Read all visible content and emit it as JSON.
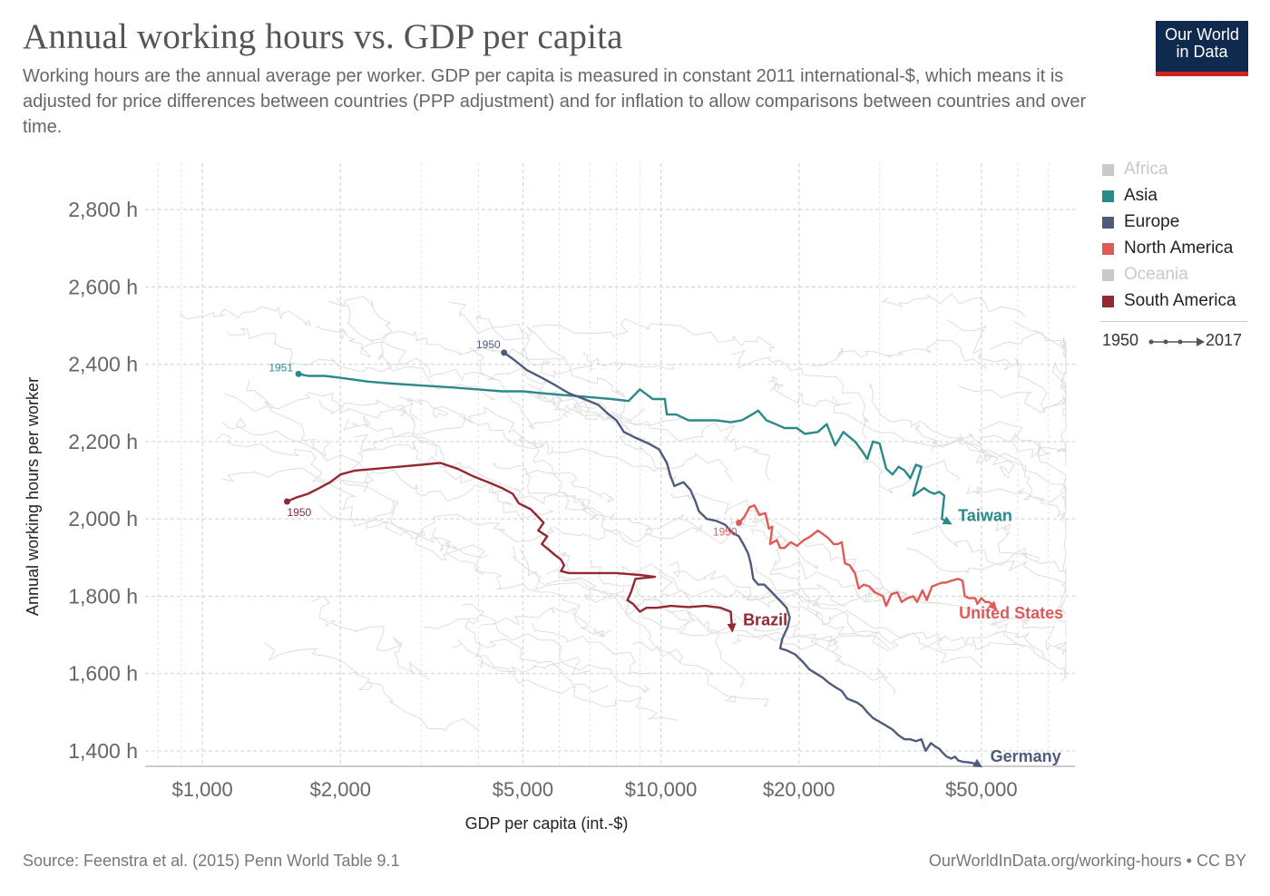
{
  "header": {
    "title": "Annual working hours vs. GDP per capita",
    "subtitle": "Working hours are the annual average per worker. GDP per capita is measured in constant 2011 international-$, which means it is adjusted for price differences between countries (PPP adjustment) and for inflation to allow comparisons between countries and over time."
  },
  "logo": {
    "line1": "Our World",
    "line2": "in Data"
  },
  "footer": {
    "source": "Source: Feenstra et al. (2015) Penn World Table 9.1",
    "credit": "OurWorldInData.org/working-hours • CC BY"
  },
  "legend": {
    "items": [
      {
        "label": "Africa",
        "color": "#c9c9c9",
        "faded": true
      },
      {
        "label": "Asia",
        "color": "#2a8a8a",
        "faded": false
      },
      {
        "label": "Europe",
        "color": "#4e5b7d",
        "faded": false
      },
      {
        "label": "North America",
        "color": "#e05a58",
        "faded": false
      },
      {
        "label": "Oceania",
        "color": "#c9c9c9",
        "faded": true
      },
      {
        "label": "South America",
        "color": "#932833",
        "faded": false
      }
    ],
    "time_start": "1950",
    "time_end": "2017"
  },
  "chart_data": {
    "type": "scatter",
    "xlabel": "GDP per capita (int.-$)",
    "ylabel": "Annual working hours per worker",
    "x_scale": "log",
    "xlim": [
      750,
      80000
    ],
    "ylim": [
      1360,
      2920
    ],
    "x_ticks": [
      {
        "value": 1000,
        "label": "$1,000"
      },
      {
        "value": 2000,
        "label": "$2,000"
      },
      {
        "value": 5000,
        "label": "$5,000"
      },
      {
        "value": 10000,
        "label": "$10,000"
      },
      {
        "value": 20000,
        "label": "$20,000"
      },
      {
        "value": 50000,
        "label": "$50,000"
      }
    ],
    "x_minor_gridlines": [
      800,
      900,
      3000,
      4000,
      6000,
      7000,
      8000,
      9000,
      30000,
      40000,
      60000,
      70000
    ],
    "y_ticks": [
      {
        "value": 1400,
        "label": "1,400 h"
      },
      {
        "value": 1600,
        "label": "1,600 h"
      },
      {
        "value": 1800,
        "label": "1,800 h"
      },
      {
        "value": 2000,
        "label": "2,000 h"
      },
      {
        "value": 2200,
        "label": "2,200 h"
      },
      {
        "value": 2400,
        "label": "2,400 h"
      },
      {
        "value": 2600,
        "label": "2,600 h"
      },
      {
        "value": 2800,
        "label": "2,800 h"
      }
    ],
    "grid": true,
    "legend_position": "right",
    "highlighted_series": [
      {
        "name": "Taiwan",
        "region": "Asia",
        "color": "#2a8a8a",
        "start_label": "1951",
        "end_label": "Taiwan",
        "points": [
          [
            1620,
            2375
          ],
          [
            1700,
            2370
          ],
          [
            1850,
            2370
          ],
          [
            2000,
            2365
          ],
          [
            2300,
            2355
          ],
          [
            2600,
            2350
          ],
          [
            3000,
            2345
          ],
          [
            3500,
            2340
          ],
          [
            4000,
            2335
          ],
          [
            4500,
            2330
          ],
          [
            5000,
            2330
          ],
          [
            5500,
            2325
          ],
          [
            6200,
            2320
          ],
          [
            7000,
            2315
          ],
          [
            7800,
            2310
          ],
          [
            8500,
            2305
          ],
          [
            9000,
            2335
          ],
          [
            9600,
            2310
          ],
          [
            10200,
            2310
          ],
          [
            10300,
            2270
          ],
          [
            10800,
            2270
          ],
          [
            11500,
            2255
          ],
          [
            12200,
            2255
          ],
          [
            13200,
            2255
          ],
          [
            14200,
            2250
          ],
          [
            15000,
            2255
          ],
          [
            15800,
            2270
          ],
          [
            16300,
            2280
          ],
          [
            17000,
            2255
          ],
          [
            17800,
            2245
          ],
          [
            18600,
            2235
          ],
          [
            19800,
            2235
          ],
          [
            20600,
            2220
          ],
          [
            22000,
            2225
          ],
          [
            23000,
            2245
          ],
          [
            24000,
            2190
          ],
          [
            25000,
            2225
          ],
          [
            26500,
            2200
          ],
          [
            27500,
            2175
          ],
          [
            28200,
            2155
          ],
          [
            29000,
            2200
          ],
          [
            30000,
            2195
          ],
          [
            31000,
            2130
          ],
          [
            32000,
            2115
          ],
          [
            33000,
            2135
          ],
          [
            34000,
            2125
          ],
          [
            35000,
            2105
          ],
          [
            36000,
            2140
          ],
          [
            37000,
            2135
          ],
          [
            35500,
            2060
          ],
          [
            37500,
            2080
          ],
          [
            38500,
            2070
          ],
          [
            39500,
            2065
          ],
          [
            40500,
            2070
          ],
          [
            41500,
            2060
          ],
          [
            41000,
            2000
          ],
          [
            42500,
            1990
          ]
        ]
      },
      {
        "name": "Germany",
        "region": "Europe",
        "color": "#4e5b7d",
        "start_label": "1950",
        "end_label": "Germany",
        "points": [
          [
            4550,
            2430
          ],
          [
            4800,
            2410
          ],
          [
            5100,
            2385
          ],
          [
            5500,
            2365
          ],
          [
            5900,
            2345
          ],
          [
            6300,
            2325
          ],
          [
            6800,
            2310
          ],
          [
            7300,
            2295
          ],
          [
            7700,
            2270
          ],
          [
            8000,
            2255
          ],
          [
            8300,
            2225
          ],
          [
            8800,
            2210
          ],
          [
            9400,
            2195
          ],
          [
            9900,
            2180
          ],
          [
            10300,
            2145
          ],
          [
            10500,
            2110
          ],
          [
            10700,
            2085
          ],
          [
            11200,
            2095
          ],
          [
            11600,
            2075
          ],
          [
            11900,
            2045
          ],
          [
            12100,
            2020
          ],
          [
            12600,
            2000
          ],
          [
            13200,
            1995
          ],
          [
            13800,
            1985
          ],
          [
            14300,
            1965
          ],
          [
            14800,
            1955
          ],
          [
            15200,
            1930
          ],
          [
            15500,
            1910
          ],
          [
            15700,
            1885
          ],
          [
            15900,
            1845
          ],
          [
            16300,
            1830
          ],
          [
            16800,
            1830
          ],
          [
            17300,
            1815
          ],
          [
            17800,
            1800
          ],
          [
            18300,
            1785
          ],
          [
            18800,
            1770
          ],
          [
            19100,
            1745
          ],
          [
            18900,
            1720
          ],
          [
            18400,
            1690
          ],
          [
            18200,
            1665
          ],
          [
            18800,
            1660
          ],
          [
            19600,
            1650
          ],
          [
            20400,
            1630
          ],
          [
            21100,
            1610
          ],
          [
            21800,
            1600
          ],
          [
            22500,
            1590
          ],
          [
            23300,
            1575
          ],
          [
            24000,
            1565
          ],
          [
            24800,
            1555
          ],
          [
            25500,
            1535
          ],
          [
            26800,
            1525
          ],
          [
            27500,
            1515
          ],
          [
            28200,
            1500
          ],
          [
            29000,
            1485
          ],
          [
            30000,
            1475
          ],
          [
            31000,
            1465
          ],
          [
            32000,
            1455
          ],
          [
            33000,
            1440
          ],
          [
            34000,
            1430
          ],
          [
            35000,
            1430
          ],
          [
            36000,
            1425
          ],
          [
            37000,
            1430
          ],
          [
            37800,
            1400
          ],
          [
            38800,
            1420
          ],
          [
            39800,
            1410
          ],
          [
            40500,
            1405
          ],
          [
            41200,
            1395
          ],
          [
            42000,
            1385
          ],
          [
            43000,
            1380
          ],
          [
            43800,
            1385
          ],
          [
            44500,
            1375
          ],
          [
            45500,
            1372
          ],
          [
            47000,
            1370
          ],
          [
            48000,
            1368
          ],
          [
            49000,
            1365
          ],
          [
            49500,
            1362
          ]
        ]
      },
      {
        "name": "United States",
        "region": "North America",
        "color": "#e05a58",
        "start_label": "1950",
        "end_label": "United States",
        "points": [
          [
            14800,
            1990
          ],
          [
            15200,
            2005
          ],
          [
            15600,
            2030
          ],
          [
            16000,
            2035
          ],
          [
            16400,
            2010
          ],
          [
            16900,
            2015
          ],
          [
            17200,
            1975
          ],
          [
            17500,
            1980
          ],
          [
            17300,
            1935
          ],
          [
            17900,
            1945
          ],
          [
            18200,
            1925
          ],
          [
            18600,
            1925
          ],
          [
            19200,
            1940
          ],
          [
            19800,
            1930
          ],
          [
            20500,
            1945
          ],
          [
            21200,
            1955
          ],
          [
            22000,
            1970
          ],
          [
            22600,
            1960
          ],
          [
            23200,
            1950
          ],
          [
            23800,
            1935
          ],
          [
            24300,
            1935
          ],
          [
            24800,
            1940
          ],
          [
            25200,
            1885
          ],
          [
            25800,
            1880
          ],
          [
            26500,
            1860
          ],
          [
            27000,
            1820
          ],
          [
            27700,
            1830
          ],
          [
            28500,
            1825
          ],
          [
            29300,
            1810
          ],
          [
            30500,
            1800
          ],
          [
            31000,
            1775
          ],
          [
            31800,
            1805
          ],
          [
            32800,
            1810
          ],
          [
            33500,
            1785
          ],
          [
            34500,
            1795
          ],
          [
            35500,
            1800
          ],
          [
            36200,
            1785
          ],
          [
            37200,
            1815
          ],
          [
            38000,
            1790
          ],
          [
            39000,
            1825
          ],
          [
            40000,
            1830
          ],
          [
            41000,
            1835
          ],
          [
            41800,
            1835
          ],
          [
            43000,
            1840
          ],
          [
            44500,
            1845
          ],
          [
            45500,
            1840
          ],
          [
            46000,
            1800
          ],
          [
            47000,
            1795
          ],
          [
            48500,
            1795
          ],
          [
            49000,
            1780
          ],
          [
            50000,
            1795
          ],
          [
            51000,
            1785
          ],
          [
            52000,
            1785
          ],
          [
            53500,
            1770
          ]
        ]
      },
      {
        "name": "Brazil",
        "region": "South America",
        "color": "#932833",
        "start_label": "1950",
        "end_label": "Brazil",
        "points": [
          [
            1530,
            2045
          ],
          [
            1600,
            2055
          ],
          [
            1700,
            2065
          ],
          [
            1800,
            2080
          ],
          [
            1900,
            2095
          ],
          [
            2000,
            2115
          ],
          [
            2150,
            2125
          ],
          [
            2400,
            2130
          ],
          [
            2700,
            2135
          ],
          [
            3000,
            2140
          ],
          [
            3300,
            2145
          ],
          [
            3600,
            2130
          ],
          [
            3900,
            2110
          ],
          [
            4200,
            2095
          ],
          [
            4500,
            2080
          ],
          [
            4750,
            2065
          ],
          [
            4900,
            2040
          ],
          [
            5200,
            2025
          ],
          [
            5400,
            2005
          ],
          [
            5550,
            1990
          ],
          [
            5400,
            1970
          ],
          [
            5650,
            1955
          ],
          [
            5500,
            1935
          ],
          [
            5700,
            1920
          ],
          [
            5900,
            1905
          ],
          [
            6050,
            1895
          ],
          [
            6150,
            1880
          ],
          [
            6050,
            1865
          ],
          [
            6300,
            1860
          ],
          [
            7000,
            1860
          ],
          [
            8000,
            1860
          ],
          [
            9000,
            1855
          ],
          [
            9700,
            1850
          ],
          [
            8800,
            1845
          ],
          [
            8600,
            1810
          ],
          [
            8450,
            1790
          ],
          [
            8700,
            1780
          ],
          [
            9000,
            1760
          ],
          [
            9300,
            1770
          ],
          [
            9800,
            1770
          ],
          [
            10500,
            1775
          ],
          [
            11500,
            1772
          ],
          [
            12500,
            1775
          ],
          [
            13500,
            1770
          ],
          [
            14200,
            1760
          ],
          [
            14300,
            1715
          ]
        ]
      }
    ]
  }
}
